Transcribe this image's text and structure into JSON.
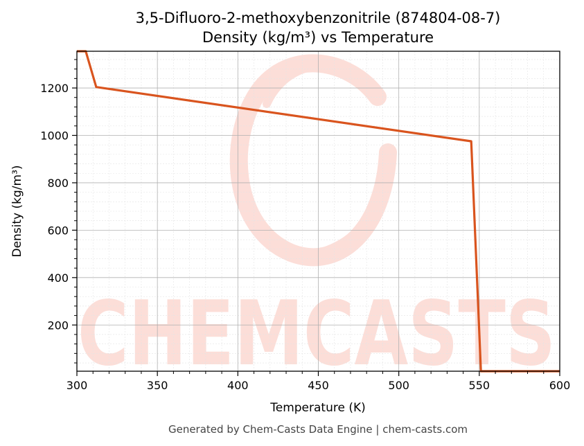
{
  "chart_data": {
    "type": "line",
    "title": "3,5-Difluoro-2-methoxybenzonitrile (874804-08-7)",
    "subtitle": "Density (kg/m³) vs Temperature",
    "xlabel": "Temperature (K)",
    "ylabel": "Density (kg/m³)",
    "xlim": [
      300,
      600
    ],
    "ylim": [
      5,
      1355
    ],
    "xticks": [
      300,
      350,
      400,
      450,
      500,
      550,
      600
    ],
    "yticks": [
      200,
      400,
      600,
      800,
      1000,
      1200
    ],
    "grid": true,
    "series": [
      {
        "color": "#d9541e",
        "x": [
          300,
          305.5,
          312,
          545,
          551,
          600
        ],
        "y": [
          1355,
          1355,
          1204,
          975,
          5,
          5
        ]
      }
    ]
  },
  "watermark": {
    "text": "CHEMCASTS",
    "color": "#fbd3cc"
  },
  "footer": "Generated by Chem-Casts Data Engine | chem-casts.com"
}
